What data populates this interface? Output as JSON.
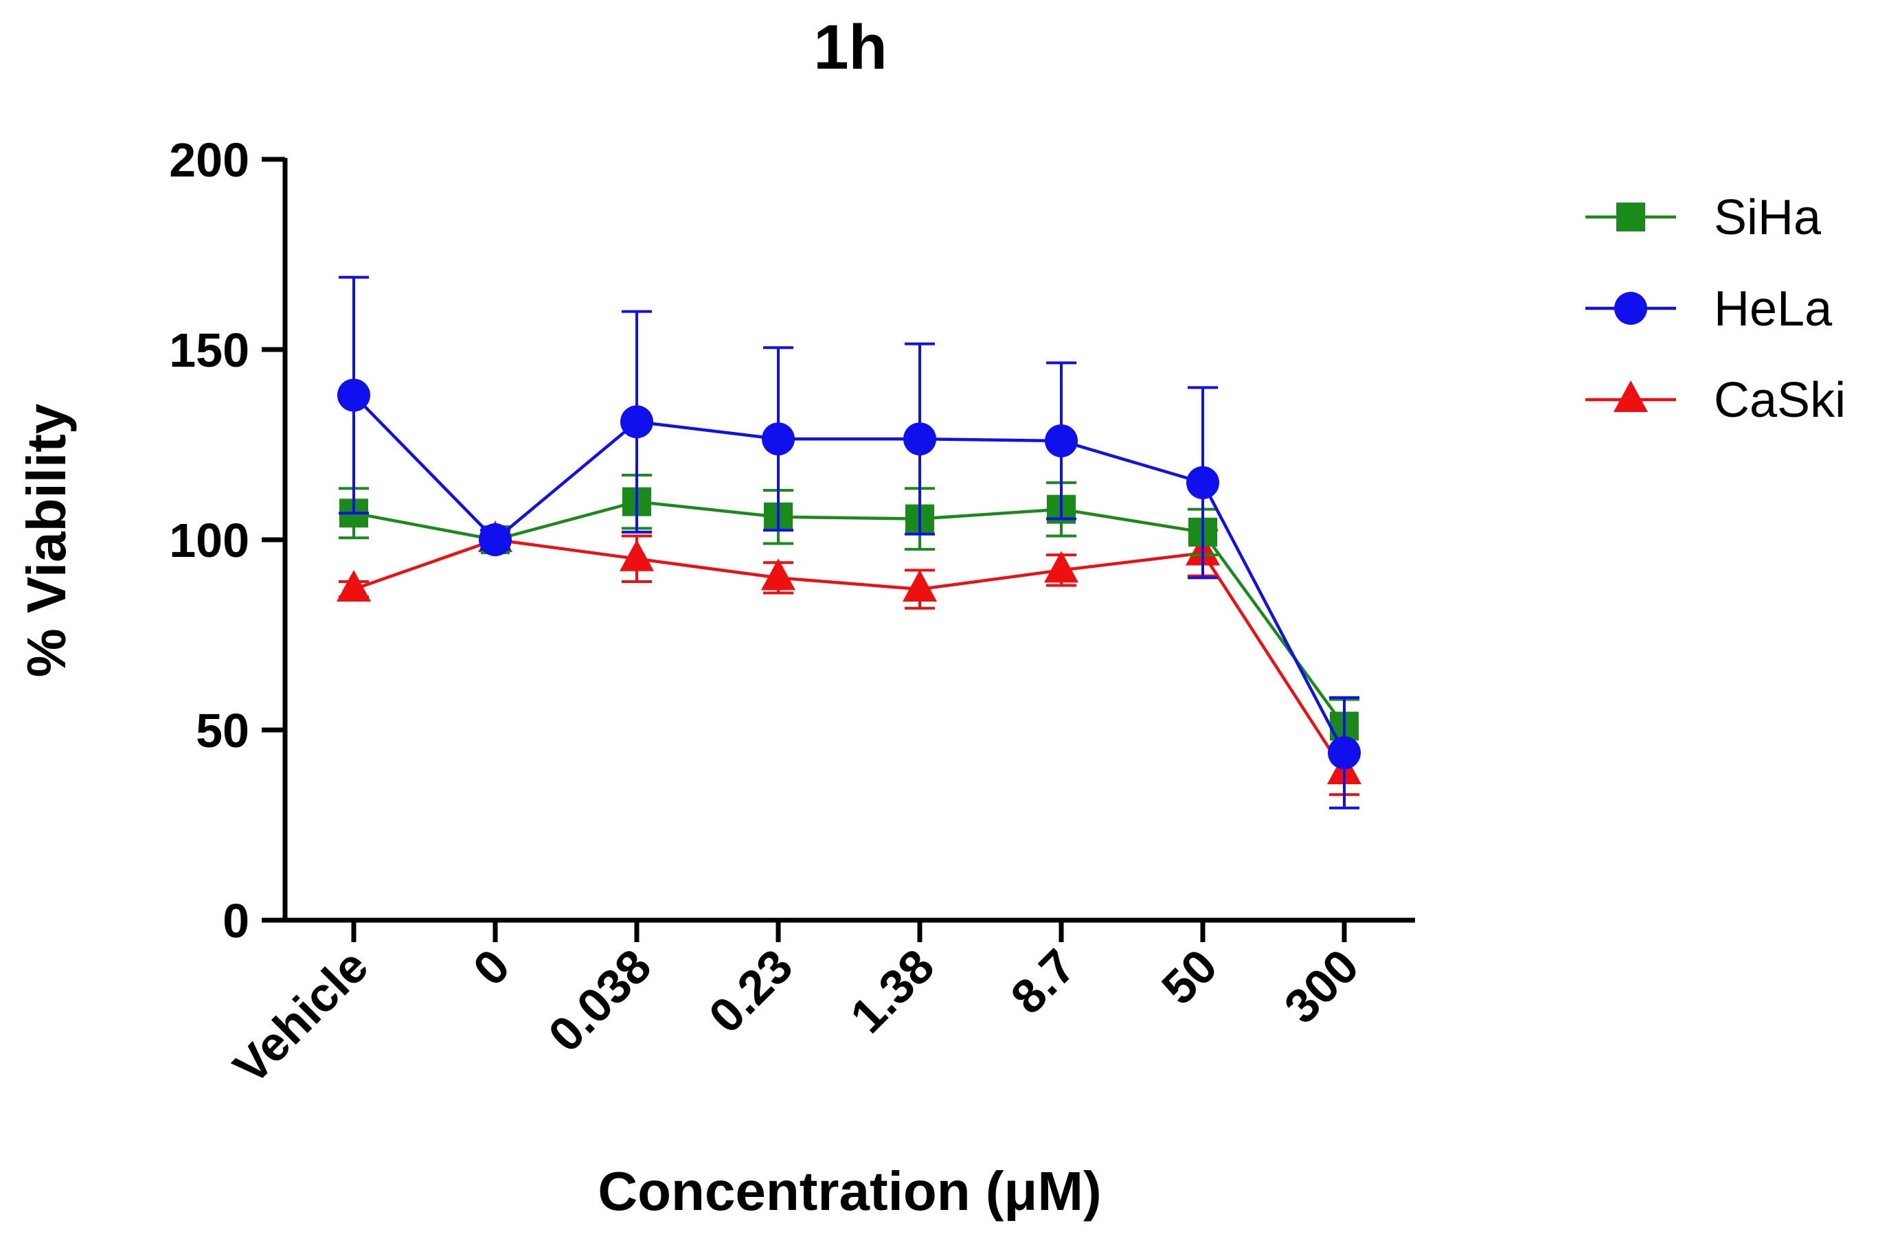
{
  "chart_data": {
    "type": "line",
    "title": "1h",
    "xlabel": "Concentration (μM)",
    "ylabel": "% Viability",
    "categories": [
      "Vehicle",
      "0",
      "0.038",
      "0.23",
      "1.38",
      "8.7",
      "50",
      "300"
    ],
    "ylim": [
      0,
      200
    ],
    "yticks": [
      0,
      50,
      100,
      150,
      200
    ],
    "grid": false,
    "legend_position": "top-right",
    "error_bars": "upper and lower",
    "series": [
      {
        "name": "SiHa",
        "color": "#1a8a1a",
        "marker": "square",
        "values": [
          107,
          100,
          110,
          106,
          105.5,
          108,
          102,
          51
        ],
        "error": [
          6.5,
          1.5,
          7,
          7,
          8,
          7,
          6,
          7
        ]
      },
      {
        "name": "HeLa",
        "color": "#1010ee",
        "marker": "circle",
        "values": [
          138,
          100,
          131,
          126.5,
          126.5,
          126,
          115,
          44
        ],
        "error": [
          31,
          2.5,
          29,
          24,
          25,
          20.5,
          25,
          14.5
        ]
      },
      {
        "name": "CaSki",
        "color": "#ee1010",
        "marker": "triangle",
        "values": [
          87,
          100,
          95,
          90,
          87,
          92,
          96.5,
          39
        ],
        "error": [
          2,
          1.5,
          6,
          4,
          5,
          4,
          6,
          6
        ]
      }
    ]
  }
}
